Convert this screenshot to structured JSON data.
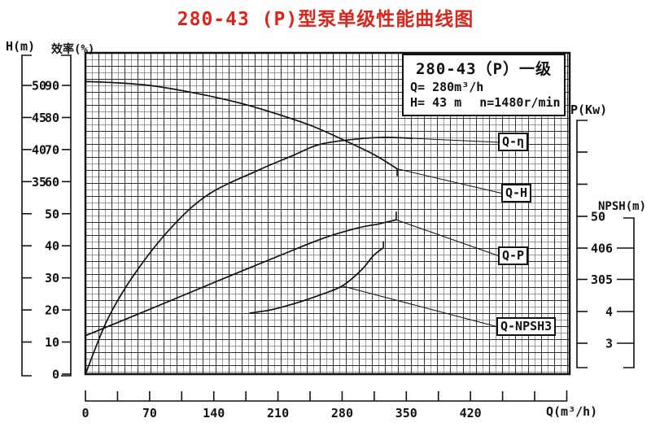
{
  "title": {
    "text": "280-43 (P)型泵单级性能曲线图",
    "color": "#d9251c"
  },
  "legend": {
    "model": "280-43（P）一级",
    "flow_line": "Q= 280m³/h",
    "head_line": "H= 43 m",
    "speed_line": "n=1480r/min"
  },
  "axes": {
    "head": {
      "label": "H(m)",
      "tick_labels": [
        "50",
        "45",
        "40",
        "35"
      ]
    },
    "efficiency": {
      "label": "效率(%)",
      "tick_labels": [
        "90",
        "80",
        "70",
        "60",
        "50",
        "40",
        "30",
        "20",
        "10",
        "0"
      ]
    },
    "power": {
      "label": "P(Kw)",
      "tick_labels": [
        "50",
        "40",
        "30"
      ]
    },
    "npsh": {
      "label": "NPSH(m)",
      "tick_labels": [
        "6",
        "5",
        "4",
        "3"
      ]
    },
    "flow": {
      "label": "Q(m³/h)",
      "tick_labels": [
        "0",
        "70",
        "140",
        "210",
        "280",
        "350",
        "420"
      ]
    }
  },
  "curve_labels": {
    "eff": "Q-η",
    "head": "Q-H",
    "power": "Q-P",
    "npsh": "Q-NPSH3"
  },
  "chart_data": {
    "type": "line",
    "title": "280-43 (P)型泵单级性能曲线图",
    "x_axis": {
      "label": "Q(m³/h)",
      "unit": "m³/h",
      "range": [
        0,
        455
      ],
      "labeled_ticks": [
        0,
        70,
        140,
        210,
        280,
        350,
        420
      ],
      "minor_tick_step": 35
    },
    "y_axes": [
      {
        "name": "H",
        "label": "H(m)",
        "unit": "m",
        "labeled_ticks": [
          50,
          45,
          40,
          35
        ],
        "tick_step": 5
      },
      {
        "name": "efficiency",
        "label": "效率(%)",
        "unit": "%",
        "labeled_ticks": [
          90,
          80,
          70,
          60,
          50,
          40,
          30,
          20,
          10,
          0
        ],
        "tick_step": 10
      },
      {
        "name": "P",
        "label": "P(Kw)",
        "unit": "Kw",
        "labeled_ticks": [
          50,
          40,
          30
        ],
        "tick_step": 10
      },
      {
        "name": "NPSH",
        "label": "NPSH(m)",
        "unit": "m",
        "labeled_ticks": [
          6,
          5,
          4,
          3
        ],
        "tick_step": 1
      }
    ],
    "rated_point": {
      "Q_m3h": 280,
      "H_m": 43,
      "speed": "1480r/min",
      "stage": "一级"
    },
    "grid": "dense 8px mesh, bold every 2nd line",
    "series": [
      {
        "id": "q_eta",
        "name": "Q-η",
        "axis": "efficiency",
        "points": [
          [
            0,
            0
          ],
          [
            24,
            17
          ],
          [
            53,
            31
          ],
          [
            93,
            45.5
          ],
          [
            134,
            56
          ],
          [
            188,
            63.5
          ],
          [
            225,
            68
          ],
          [
            254,
            71.5
          ],
          [
            286,
            73
          ],
          [
            323,
            73.8
          ],
          [
            357,
            73.5
          ]
        ]
      },
      {
        "id": "q_h",
        "name": "Q-H",
        "axis": "H",
        "points": [
          [
            0,
            50.6
          ],
          [
            35,
            50.4
          ],
          [
            70,
            50
          ],
          [
            105,
            49.2
          ],
          [
            140,
            48.2
          ],
          [
            175,
            47
          ],
          [
            210,
            45.5
          ],
          [
            245,
            43.8
          ],
          [
            280,
            41.6
          ],
          [
            315,
            39.2
          ],
          [
            340,
            37
          ]
        ]
      },
      {
        "id": "q_p",
        "name": "Q-P",
        "axis": "P",
        "points": [
          [
            0,
            12.1
          ],
          [
            56,
            18.8
          ],
          [
            108,
            25.1
          ],
          [
            159,
            31.3
          ],
          [
            211,
            37.5
          ],
          [
            260,
            43.2
          ],
          [
            297,
            46.4
          ],
          [
            320,
            47.7
          ],
          [
            339,
            49
          ]
        ]
      },
      {
        "id": "q_npsh3",
        "name": "Q-NPSH3",
        "axis": "NPSH",
        "points": [
          [
            179,
            3.95
          ],
          [
            202,
            4.05
          ],
          [
            228,
            4.25
          ],
          [
            254,
            4.5
          ],
          [
            280,
            4.8
          ],
          [
            301,
            5.3
          ],
          [
            314,
            5.75
          ],
          [
            325,
            6
          ]
        ]
      }
    ]
  }
}
